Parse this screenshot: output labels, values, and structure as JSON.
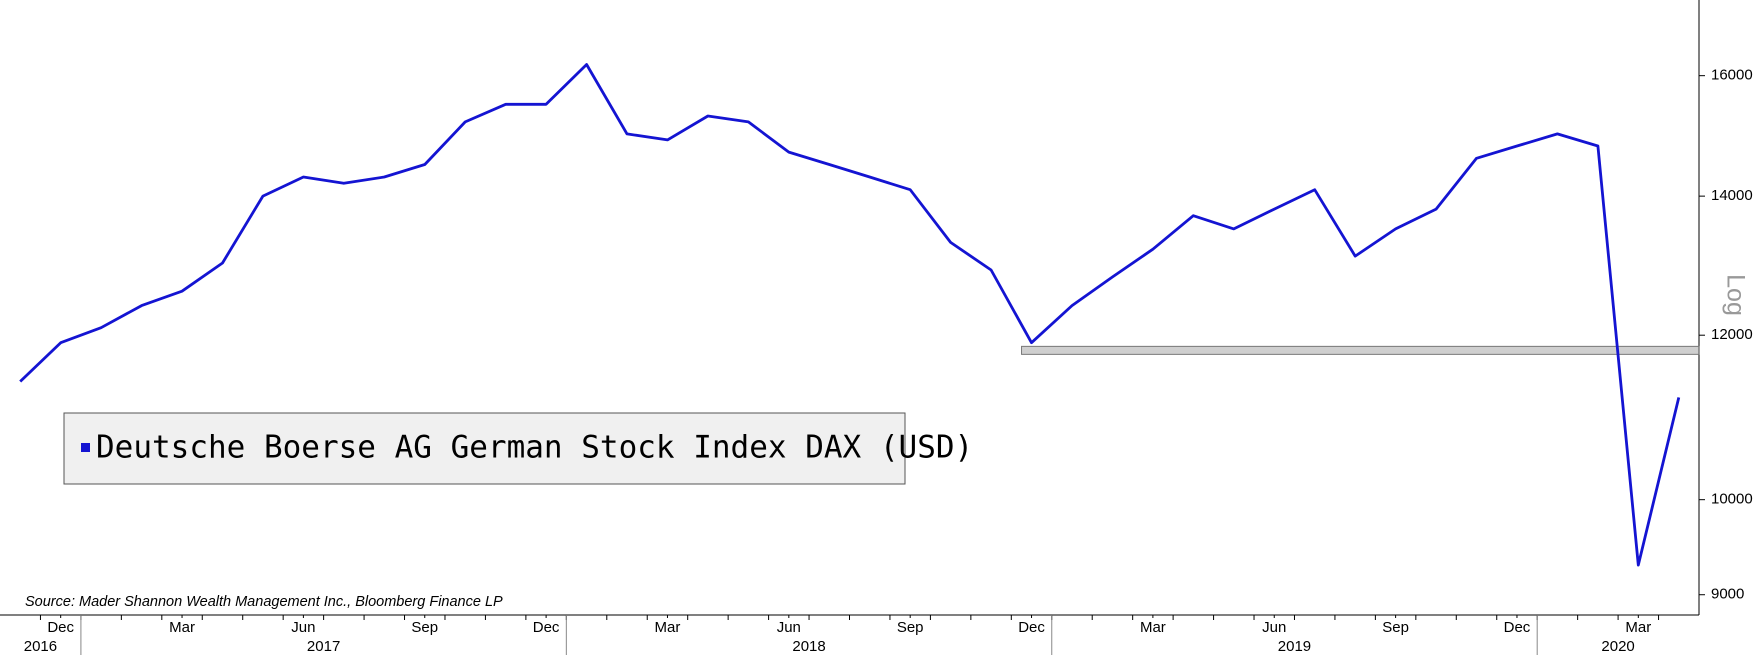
{
  "chart_data": {
    "type": "line",
    "legend": "Deutsche Boerse AG German Stock Index DAX (USD)",
    "source": "Source: Mader Shannon Wealth Management Inc., Bloomberg Finance LP",
    "y_axis_label": "Log",
    "log_scale": true,
    "y_axis_side": "right",
    "x": [
      "2016-11",
      "2016-12",
      "2017-01",
      "2017-02",
      "2017-03",
      "2017-04",
      "2017-05",
      "2017-06",
      "2017-07",
      "2017-08",
      "2017-09",
      "2017-10",
      "2017-11",
      "2017-12",
      "2018-01",
      "2018-02",
      "2018-03",
      "2018-04",
      "2018-05",
      "2018-06",
      "2018-07",
      "2018-08",
      "2018-09",
      "2018-10",
      "2018-11",
      "2018-12",
      "2019-01",
      "2019-02",
      "2019-03",
      "2019-04",
      "2019-05",
      "2019-06",
      "2019-07",
      "2019-08",
      "2019-09",
      "2019-10",
      "2019-11",
      "2019-12",
      "2020-01",
      "2020-02",
      "2020-03",
      "2020-04"
    ],
    "series": [
      {
        "name": "Deutsche Boerse AG German Stock Index DAX (USD)",
        "color": "#1414d2",
        "values": [
          11400,
          11900,
          12100,
          12400,
          12600,
          13000,
          14000,
          14300,
          14200,
          14300,
          14500,
          15200,
          15500,
          15500,
          16200,
          15000,
          14900,
          15300,
          15200,
          14700,
          14500,
          14300,
          14100,
          13300,
          12900,
          11900,
          12400,
          12800,
          13200,
          13700,
          13500,
          13800,
          14100,
          13100,
          13500,
          13800,
          14600,
          14800,
          15000,
          14800,
          9300,
          11200
        ]
      }
    ],
    "reference_band": {
      "value": 11800,
      "x": [
        "2018-12",
        "2020-04"
      ]
    },
    "xlim": [
      "2016-11",
      "2020-05"
    ],
    "xticks": [
      {
        "value": "2016-12",
        "label": "Dec"
      },
      {
        "value": "2017-03",
        "label": "Mar"
      },
      {
        "value": "2017-06",
        "label": "Jun"
      },
      {
        "value": "2017-09",
        "label": "Sep"
      },
      {
        "value": "2017-12",
        "label": "Dec"
      },
      {
        "value": "2018-03",
        "label": "Mar"
      },
      {
        "value": "2018-06",
        "label": "Jun"
      },
      {
        "value": "2018-09",
        "label": "Sep"
      },
      {
        "value": "2018-12",
        "label": "Dec"
      },
      {
        "value": "2019-03",
        "label": "Mar"
      },
      {
        "value": "2019-06",
        "label": "Jun"
      },
      {
        "value": "2019-09",
        "label": "Sep"
      },
      {
        "value": "2019-12",
        "label": "Dec"
      },
      {
        "value": "2020-03",
        "label": "Mar"
      }
    ],
    "xticks_years": [
      2016,
      2017,
      2018,
      2019,
      2020
    ],
    "ylim": [
      8800,
      17400
    ],
    "yticks": [
      9000,
      10000,
      12000,
      14000,
      16000
    ]
  }
}
